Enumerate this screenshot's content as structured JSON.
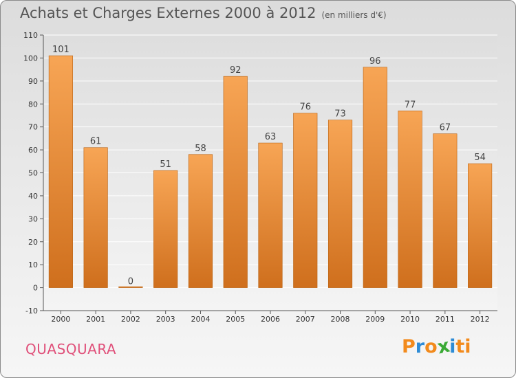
{
  "header": {
    "title": "Achats et Charges Externes 2000 à 2012",
    "subtitle": "(en milliers d'€)"
  },
  "footer": {
    "commune": "QUASQUARA",
    "logo": [
      "P",
      "r",
      "o",
      "x",
      "i",
      "t",
      "i"
    ]
  },
  "colors": {
    "bar_light": "#f7a555",
    "bar_dark": "#cf6f1d",
    "commune": "#e0507a",
    "logo": [
      "#f28a1c",
      "#2d8bd6",
      "#f28a1c",
      "#3aa935",
      "#2d8bd6",
      "#f28a1c",
      "#f28a1c"
    ]
  },
  "chart_data": {
    "type": "bar",
    "title": "Achats et Charges Externes 2000 à 2012",
    "subtitle": "(en milliers d'€)",
    "categories": [
      "2000",
      "2001",
      "2002",
      "2003",
      "2004",
      "2005",
      "2006",
      "2007",
      "2008",
      "2009",
      "2010",
      "2011",
      "2012"
    ],
    "values": [
      101,
      61,
      0,
      51,
      58,
      92,
      63,
      76,
      73,
      96,
      77,
      67,
      54
    ],
    "yticks": [
      -10,
      0,
      10,
      20,
      30,
      40,
      50,
      60,
      70,
      80,
      90,
      100,
      110
    ],
    "ylim": [
      -10,
      110
    ],
    "xlabel": "",
    "ylabel": "",
    "grid": true
  }
}
